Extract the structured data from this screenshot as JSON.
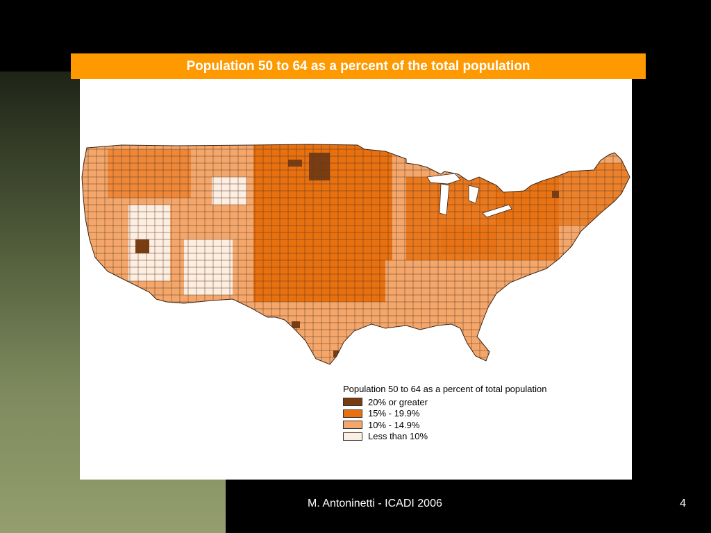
{
  "slide": {
    "title": "Population 50 to 64 as a percent of the total population",
    "footer": "M. Antoninetti - ICADI 2006",
    "page_number": "4"
  },
  "legend": {
    "title": "Population 50 to 64 as a percent of total population",
    "items": [
      {
        "label": "20% or greater",
        "color": "#7a3d12"
      },
      {
        "label": "15% - 19.9%",
        "color": "#e8700f"
      },
      {
        "label": "10% - 14.9%",
        "color": "#f5a76b"
      },
      {
        "label": "Less than 10%",
        "color": "#fdeee2"
      }
    ]
  },
  "colors": {
    "title_bar": "#ff9900",
    "background": "#000000",
    "side_panel": "#7f8b5e"
  }
}
